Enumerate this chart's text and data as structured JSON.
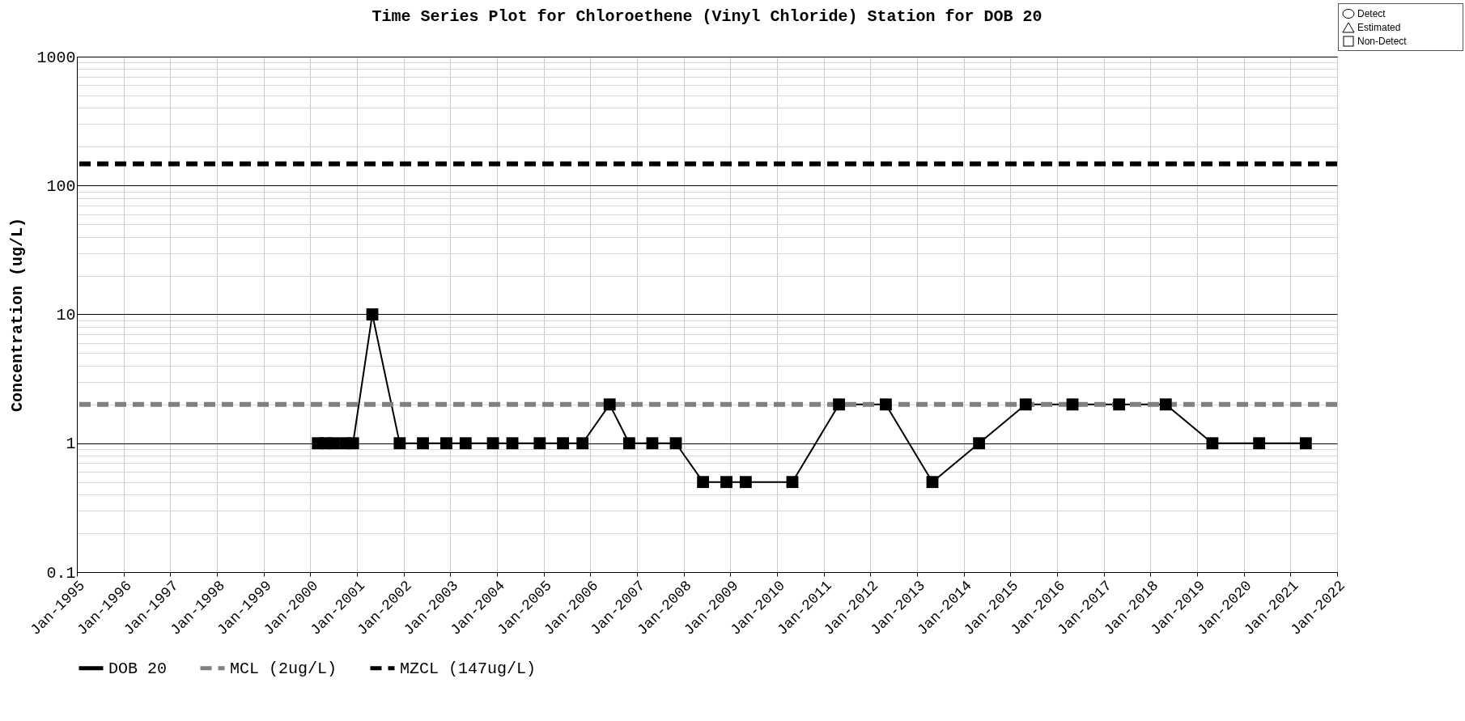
{
  "chart_data": {
    "type": "line",
    "title": "Time Series Plot for Chloroethene (Vinyl Chloride) Station for DOB 20",
    "ylabel": "Concentration (ug/L)",
    "x": [
      "2000-03",
      "2000-05",
      "2000-07",
      "2000-10",
      "2000-12",
      "2001-05",
      "2001-12",
      "2002-06",
      "2002-12",
      "2003-05",
      "2003-12",
      "2004-05",
      "2004-12",
      "2005-06",
      "2005-11",
      "2006-06",
      "2006-11",
      "2007-05",
      "2007-11",
      "2008-06",
      "2008-12",
      "2009-05",
      "2010-05",
      "2011-05",
      "2012-05",
      "2013-05",
      "2014-05",
      "2015-05",
      "2016-05",
      "2017-05",
      "2018-05",
      "2019-05",
      "2020-05",
      "2021-05"
    ],
    "series": [
      {
        "name": "DOB 20",
        "color": "#000000",
        "values": [
          1,
          1,
          1,
          1,
          1,
          10,
          1,
          1,
          1,
          1,
          1,
          1,
          1,
          1,
          1,
          2,
          1,
          1,
          1,
          0.5,
          0.5,
          0.5,
          0.5,
          2,
          2,
          0.5,
          1,
          2,
          2,
          2,
          2,
          1,
          1,
          1
        ]
      }
    ],
    "marker": "square",
    "line_style": "solid",
    "log": true,
    "grid": true,
    "legend": "bottom",
    "xlim": [
      "1995-01",
      "2022-01"
    ],
    "xticks": [
      {
        "value": "1995-01",
        "label": "Jan-1995"
      },
      {
        "value": "1996-01",
        "label": "Jan-1996"
      },
      {
        "value": "1997-01",
        "label": "Jan-1997"
      },
      {
        "value": "1998-01",
        "label": "Jan-1998"
      },
      {
        "value": "1999-01",
        "label": "Jan-1999"
      },
      {
        "value": "2000-01",
        "label": "Jan-2000"
      },
      {
        "value": "2001-01",
        "label": "Jan-2001"
      },
      {
        "value": "2002-01",
        "label": "Jan-2002"
      },
      {
        "value": "2003-01",
        "label": "Jan-2003"
      },
      {
        "value": "2004-01",
        "label": "Jan-2004"
      },
      {
        "value": "2005-01",
        "label": "Jan-2005"
      },
      {
        "value": "2006-01",
        "label": "Jan-2006"
      },
      {
        "value": "2007-01",
        "label": "Jan-2007"
      },
      {
        "value": "2008-01",
        "label": "Jan-2008"
      },
      {
        "value": "2009-01",
        "label": "Jan-2009"
      },
      {
        "value": "2010-01",
        "label": "Jan-2010"
      },
      {
        "value": "2011-01",
        "label": "Jan-2011"
      },
      {
        "value": "2012-01",
        "label": "Jan-2012"
      },
      {
        "value": "2013-01",
        "label": "Jan-2013"
      },
      {
        "value": "2014-01",
        "label": "Jan-2014"
      },
      {
        "value": "2015-01",
        "label": "Jan-2015"
      },
      {
        "value": "2016-01",
        "label": "Jan-2016"
      },
      {
        "value": "2017-01",
        "label": "Jan-2017"
      },
      {
        "value": "2018-01",
        "label": "Jan-2018"
      },
      {
        "value": "2019-01",
        "label": "Jan-2019"
      },
      {
        "value": "2020-01",
        "label": "Jan-2020"
      },
      {
        "value": "2021-01",
        "label": "Jan-2021"
      },
      {
        "value": "2022-01",
        "label": "Jan-2022"
      }
    ],
    "ylim": [
      0.1,
      1000
    ],
    "yticks": [
      0.1,
      {
        "value": 0.2,
        "label": null
      },
      {
        "value": 0.3,
        "label": null
      },
      {
        "value": 0.4,
        "label": null
      },
      {
        "value": 0.5,
        "label": null
      },
      {
        "value": 0.6,
        "label": null
      },
      {
        "value": 0.7,
        "label": null
      },
      {
        "value": 0.8,
        "label": null
      },
      {
        "value": 0.9,
        "label": null
      },
      1,
      {
        "value": 2,
        "label": null
      },
      {
        "value": 3,
        "label": null
      },
      {
        "value": 4,
        "label": null
      },
      {
        "value": 5,
        "label": null
      },
      {
        "value": 6,
        "label": null
      },
      {
        "value": 7,
        "label": null
      },
      {
        "value": 8,
        "label": null
      },
      {
        "value": 9,
        "label": null
      },
      10,
      {
        "value": 20,
        "label": null
      },
      {
        "value": 30,
        "label": null
      },
      {
        "value": 40,
        "label": null
      },
      {
        "value": 50,
        "label": null
      },
      {
        "value": 60,
        "label": null
      },
      {
        "value": 70,
        "label": null
      },
      {
        "value": 80,
        "label": null
      },
      {
        "value": 90,
        "label": null
      },
      100,
      {
        "value": 200,
        "label": null
      },
      {
        "value": 300,
        "label": null
      },
      {
        "value": 400,
        "label": null
      },
      {
        "value": 500,
        "label": null
      },
      {
        "value": 600,
        "label": null
      },
      {
        "value": 700,
        "label": null
      },
      {
        "value": 800,
        "label": null
      },
      {
        "value": 900,
        "label": null
      },
      1000
    ],
    "ref_lines": [
      {
        "axis": "y",
        "value": 2,
        "label": "MCL (2ug/L)",
        "color": "#808080",
        "line_style": "dashed"
      },
      {
        "axis": "y",
        "value": 147,
        "label": "MZCL (147ug/L)",
        "color": "#000000",
        "line_style": "dashed"
      }
    ],
    "annotations": [
      "Detect",
      "Estimated",
      "Non-Detect"
    ]
  }
}
